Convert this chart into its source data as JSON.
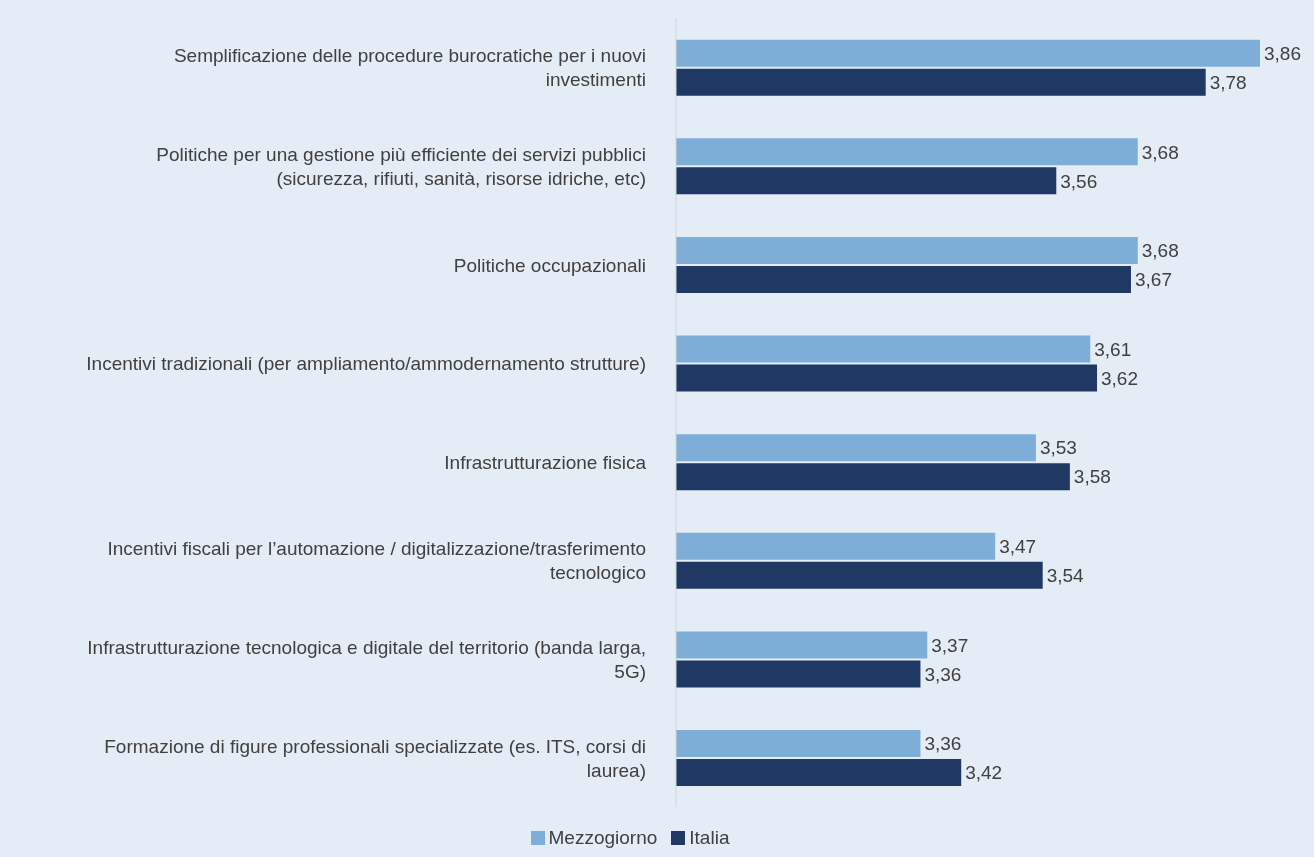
{
  "chart_data": {
    "type": "bar",
    "orientation": "horizontal",
    "categories": [
      "Semplificazione delle procedure burocratiche per i nuovi investimenti",
      "Politiche per una gestione più efficiente dei servizi pubblici (sicurezza, rifiuti, sanità, risorse idriche, etc)",
      "Politiche occupazionali",
      "Incentivi tradizionali (per ampliamento/ammodernamento strutture)",
      "Infrastrutturazione fisica",
      "Incentivi fiscali per l’automazione / digitalizzazione/trasferimento tecnologico",
      "Infrastrutturazione tecnologica e digitale del territorio (banda larga, 5G)",
      "Formazione di figure professionali specializzate (es. ITS, corsi di laurea)"
    ],
    "series": [
      {
        "name": "Mezzogiorno",
        "color": "#7eaed8",
        "values": [
          3.86,
          3.68,
          3.68,
          3.61,
          3.53,
          3.47,
          3.37,
          3.36
        ],
        "value_labels": [
          "3,86",
          "3,68",
          "3,68",
          "3,61",
          "3,53",
          "3,47",
          "3,37",
          "3,36"
        ]
      },
      {
        "name": "Italia",
        "color": "#1f3864",
        "values": [
          3.78,
          3.56,
          3.67,
          3.62,
          3.58,
          3.54,
          3.36,
          3.42
        ],
        "value_labels": [
          "3,78",
          "3,56",
          "3,67",
          "3,62",
          "3,58",
          "3,54",
          "3,36",
          "3,42"
        ]
      }
    ],
    "xlim": [
      3,
      3.86
    ],
    "tick_labels": "y",
    "grid": false,
    "legend": "bottom"
  }
}
